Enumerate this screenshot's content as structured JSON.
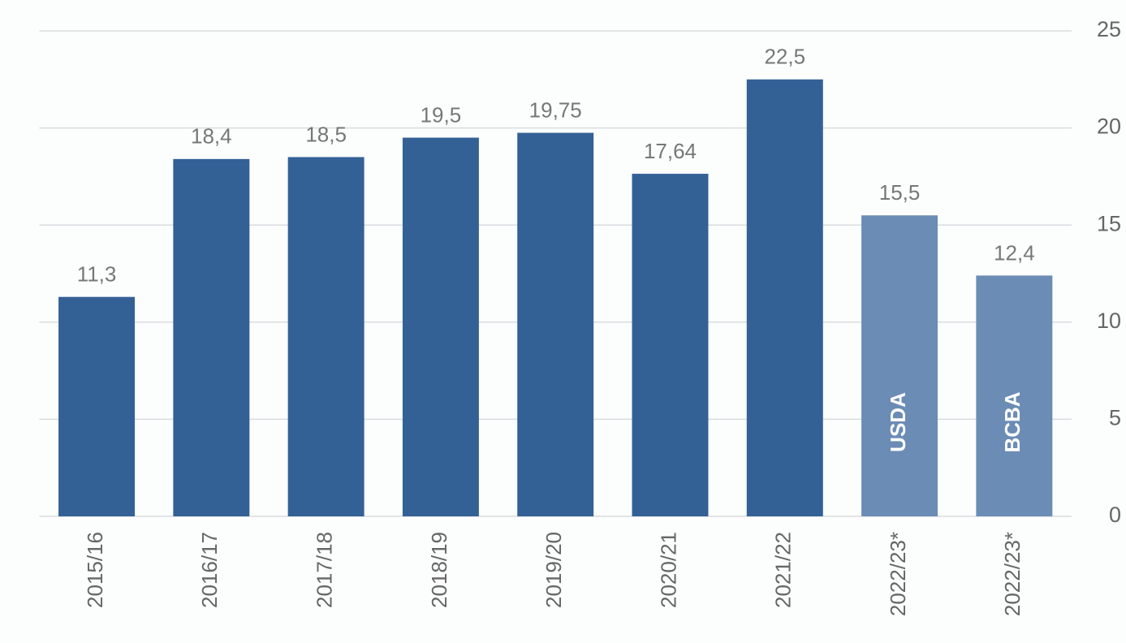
{
  "chart_data": {
    "type": "bar",
    "categories": [
      "2015/16",
      "2016/17",
      "2017/18",
      "2018/19",
      "2019/20",
      "2020/21",
      "2021/22",
      "2022/23*",
      "2022/23*"
    ],
    "values": [
      11.3,
      18.4,
      18.5,
      19.5,
      19.75,
      17.64,
      22.5,
      15.5,
      12.4
    ],
    "value_labels": [
      "11,3",
      "18,4",
      "18,5",
      "19,5",
      "19,75",
      "17,64",
      "22,5",
      "15,5",
      "12,4"
    ],
    "colors": [
      "#336196",
      "#336196",
      "#336196",
      "#336196",
      "#336196",
      "#336196",
      "#336196",
      "#6b8cb5",
      "#6b8cb5"
    ],
    "bar_text": [
      null,
      null,
      null,
      null,
      null,
      null,
      null,
      "USDA",
      "BCBA"
    ],
    "ylim": [
      0,
      25
    ],
    "yticks": [
      0,
      5,
      10,
      15,
      20,
      25
    ],
    "grid": true,
    "y_axis_side": "right"
  }
}
